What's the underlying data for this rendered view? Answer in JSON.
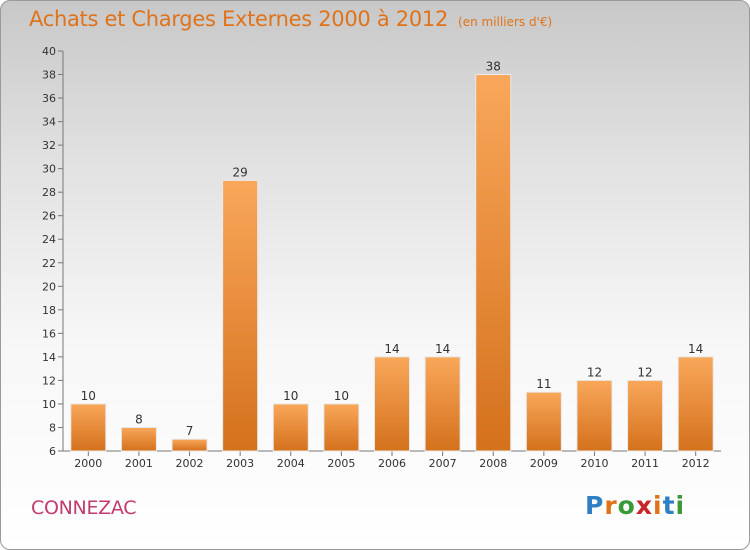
{
  "header": {
    "title": "Achats et Charges Externes 2000 à 2012",
    "subtitle": "(en milliers d'€)"
  },
  "footer": {
    "commune": "CONNEZAC",
    "logo": "Proxiti"
  },
  "colors": {
    "title": "#e0731a",
    "commune": "#c23a6f",
    "bar_light": "#f9a75a",
    "bar_dark": "#d4711c",
    "logo_letters": [
      "#2f7fc4",
      "#e0731a",
      "#3a9a3a",
      "#c8242a",
      "#e0731a",
      "#2f7fc4",
      "#3a9a3a"
    ]
  },
  "chart_data": {
    "type": "bar",
    "categories": [
      "2000",
      "2001",
      "2002",
      "2003",
      "2004",
      "2005",
      "2006",
      "2007",
      "2008",
      "2009",
      "2010",
      "2011",
      "2012"
    ],
    "values": [
      10,
      8,
      7,
      29,
      10,
      10,
      14,
      14,
      38,
      11,
      12,
      12,
      14
    ],
    "ylim": [
      6,
      40
    ],
    "yticks": [
      6,
      8,
      10,
      12,
      14,
      16,
      18,
      20,
      22,
      24,
      26,
      28,
      30,
      32,
      34,
      36,
      38,
      40
    ],
    "grid": false,
    "xlabel": "",
    "ylabel": ""
  }
}
